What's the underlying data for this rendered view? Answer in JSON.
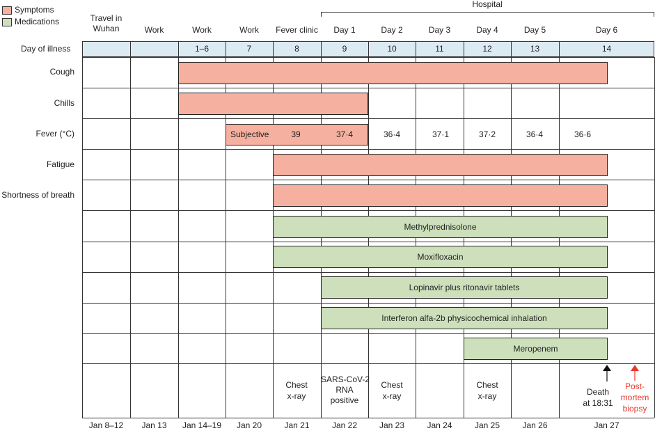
{
  "legend": {
    "symptoms": "Symptoms",
    "medications": "Medications"
  },
  "colors": {
    "symptom": "#f6b0a0",
    "medication": "#cde0bb",
    "day_row": "#dcebf2",
    "postmortem": "#e8392d"
  },
  "hospital_label": "Hospital",
  "columns": [
    "Travel in\nWuhan",
    "Work",
    "Work",
    "Work",
    "Fever clinic",
    "Day 1",
    "Day 2",
    "Day 3",
    "Day 4",
    "Day 5",
    "Day 6"
  ],
  "day_of_illness_label": "Day of illness",
  "day_of_illness": [
    "",
    "",
    "1–6",
    "7",
    "8",
    "9",
    "10",
    "11",
    "12",
    "13",
    "14"
  ],
  "rows": [
    "Cough",
    "Chills",
    "Fever (°C)",
    "Fatigue",
    "Shortness of breath"
  ],
  "fever": {
    "subjective": "Subjective",
    "values": [
      "39",
      "37·4",
      "36·4",
      "37·1",
      "37·2",
      "36·4",
      "36·6"
    ]
  },
  "medications": [
    "Methylprednisolone",
    "Moxifloxacin",
    "Lopinavir plus ritonavir tablets",
    "Interferon alfa-2b physicochemical inhalation",
    "Meropenem"
  ],
  "events": {
    "chest_xray_1": "Chest\nx-ray",
    "sars": "SARS-CoV-2\nRNA\npositive",
    "chest_xray_2": "Chest\nx-ray",
    "chest_xray_3": "Chest\nx-ray",
    "death": "Death\nat 18:31",
    "postmortem": "Post-\nmortem\nbiopsy"
  },
  "dates": [
    "Jan 8–12",
    "Jan 13",
    "Jan 14–19",
    "Jan 20",
    "Jan 21",
    "Jan 22",
    "Jan 23",
    "Jan 24",
    "Jan 25",
    "Jan 26",
    "Jan 27"
  ]
}
